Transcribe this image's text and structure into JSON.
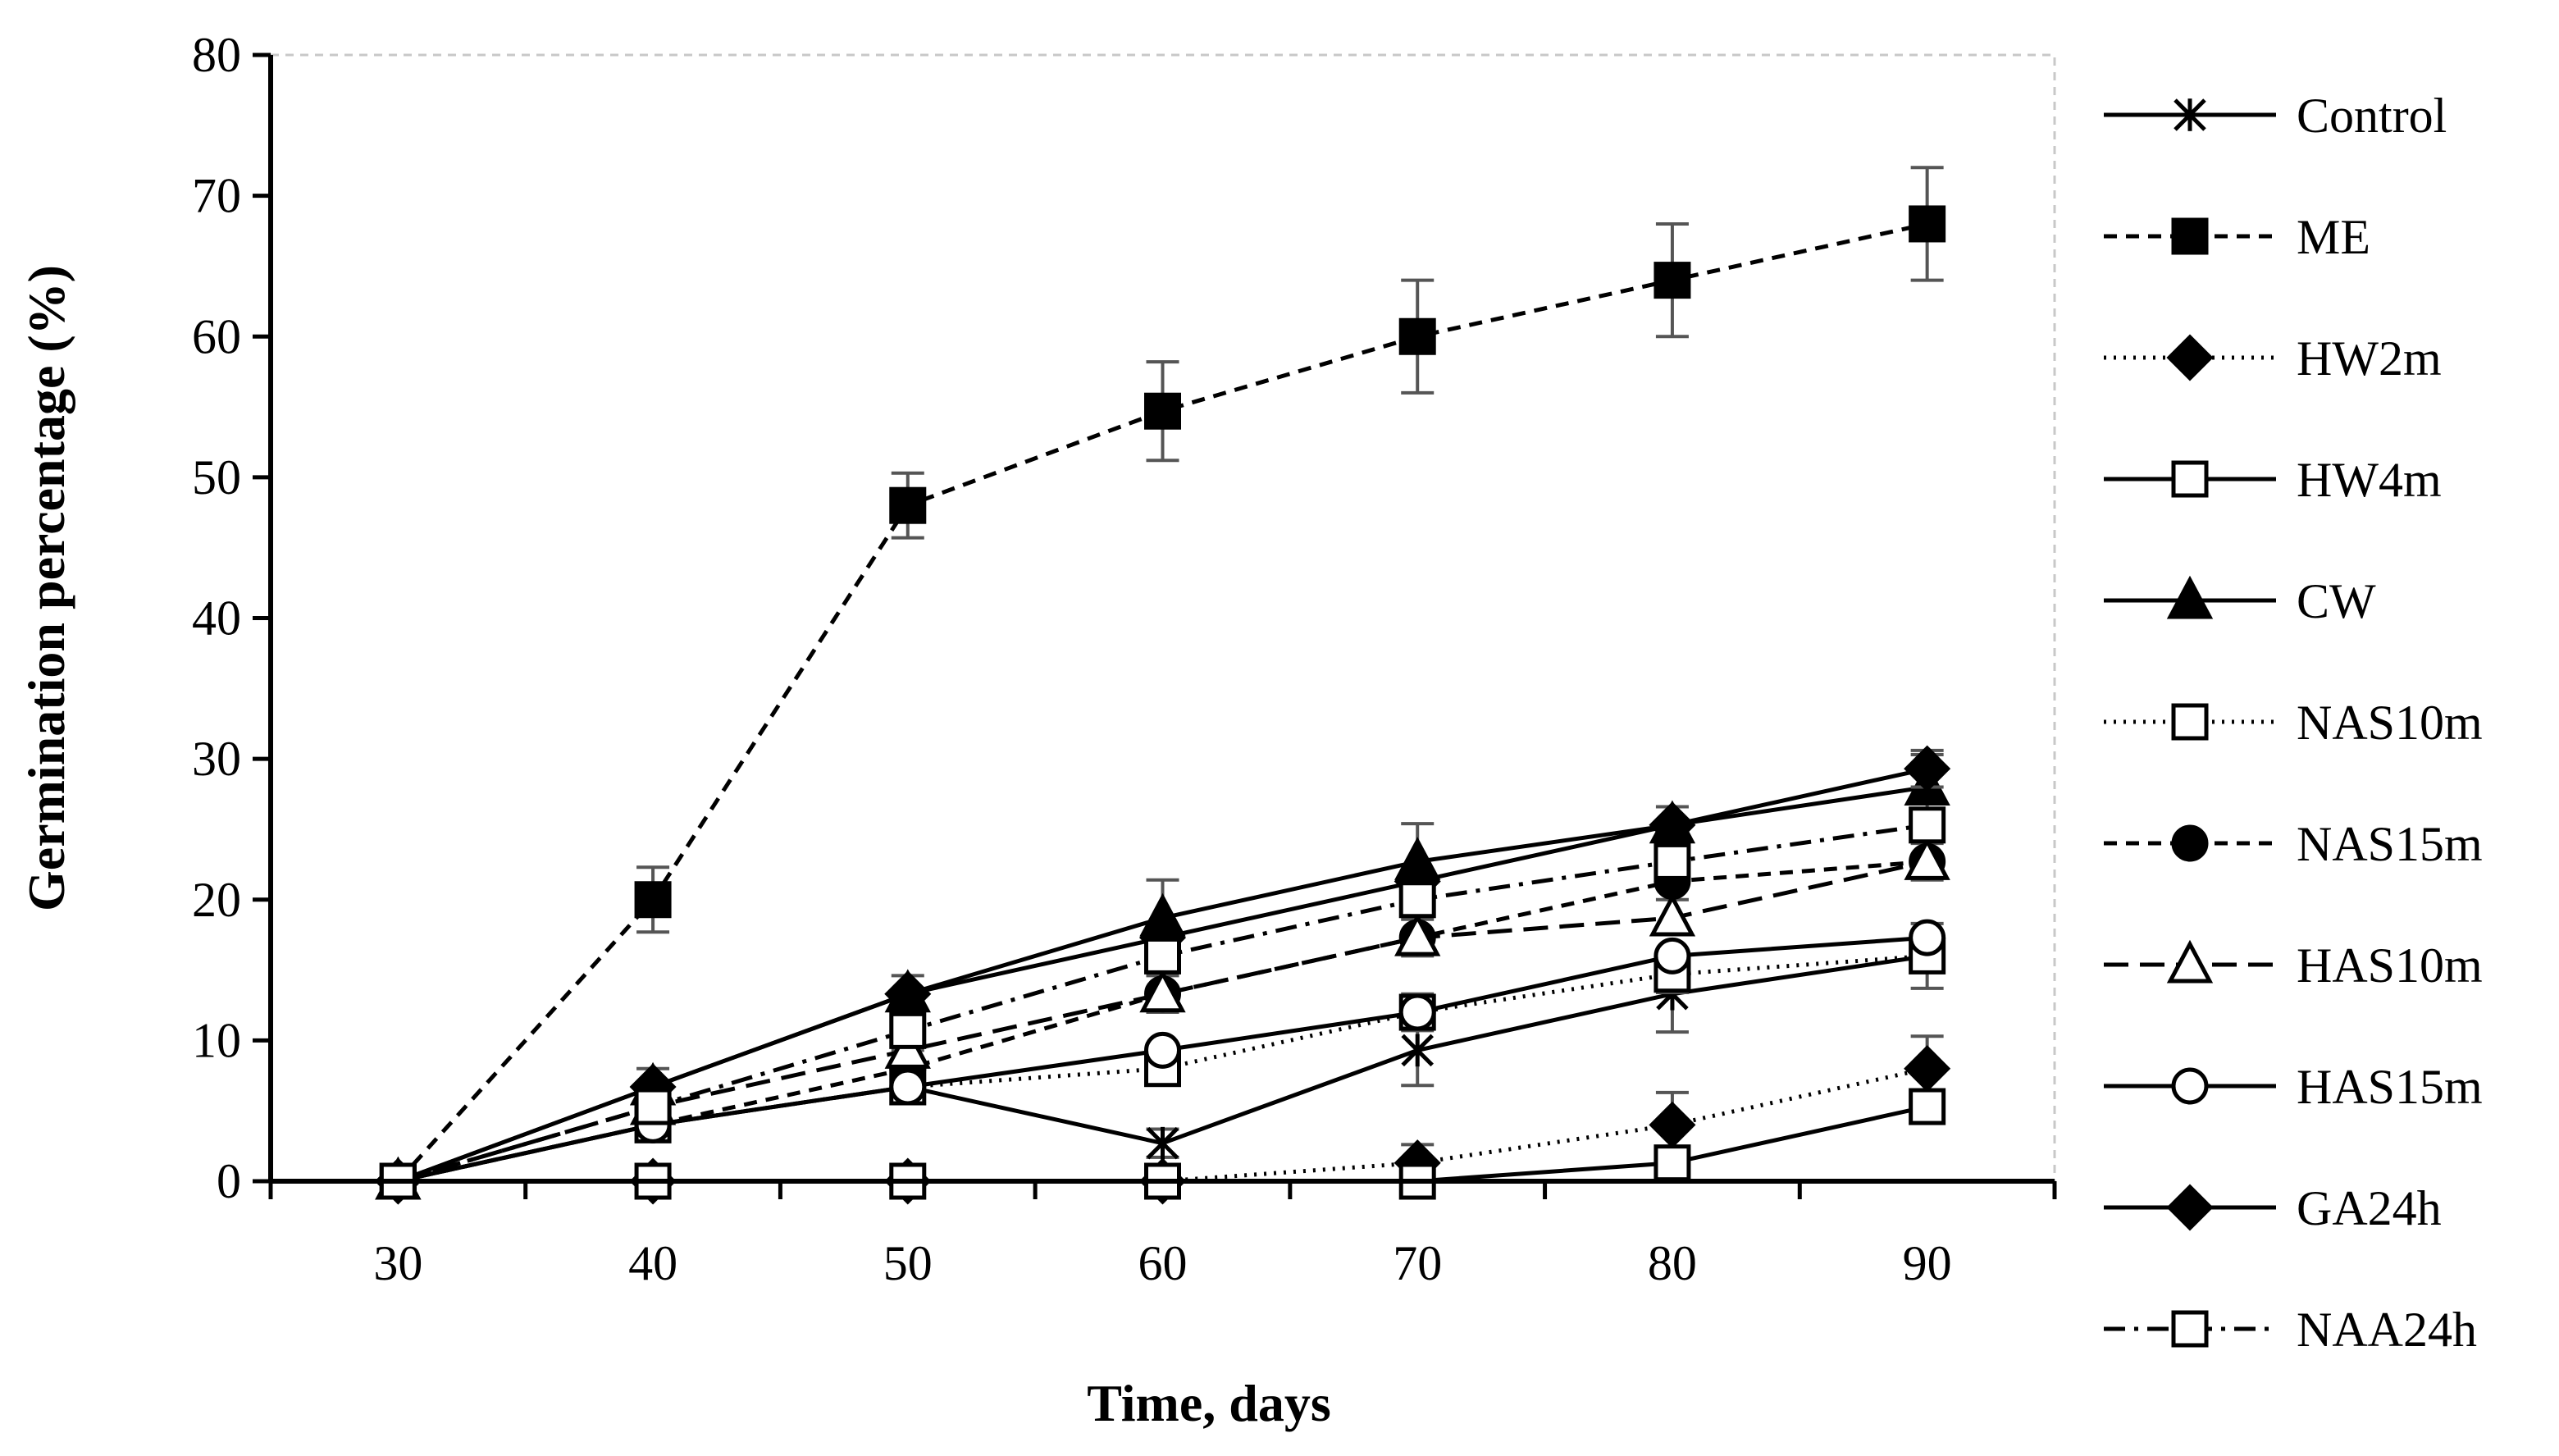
{
  "chart_data": {
    "type": "line",
    "title": "",
    "xlabel": "Time, days",
    "ylabel": "Germination percentage (%)",
    "x": [
      30,
      40,
      50,
      60,
      70,
      80,
      90
    ],
    "xlim": [
      25,
      95
    ],
    "ylim": [
      0,
      80
    ],
    "yticks": [
      0,
      10,
      20,
      30,
      40,
      50,
      60,
      70,
      80
    ],
    "grid": false,
    "legend_position": "right",
    "series": [
      {
        "name": "Control",
        "marker": "x",
        "line": "solid",
        "values": [
          0,
          4,
          6.7,
          2.7,
          9.3,
          13.3,
          16
        ],
        "err": [
          0,
          0,
          0,
          1,
          2.5,
          2.7,
          0
        ]
      },
      {
        "name": "ME",
        "marker": "square-filled",
        "line": "dashed",
        "values": [
          0,
          20,
          48,
          54.7,
          60,
          64,
          68
        ],
        "err": [
          0,
          2.3,
          2.3,
          3.5,
          4,
          4,
          4
        ]
      },
      {
        "name": "HW2m",
        "marker": "diamond-filled",
        "line": "dotted",
        "values": [
          0,
          0,
          0,
          0,
          1.3,
          4,
          8
        ],
        "err": [
          0,
          0,
          0,
          0,
          1.3,
          2.3,
          2.3
        ]
      },
      {
        "name": "HW4m",
        "marker": "square-open",
        "line": "solid",
        "values": [
          0,
          0,
          0,
          0,
          0,
          1.3,
          5.3
        ],
        "err": [
          0,
          0,
          0,
          0,
          0,
          0,
          0
        ]
      },
      {
        "name": "CW",
        "marker": "triangle-filled",
        "line": "solid",
        "values": [
          0,
          6.7,
          13.3,
          18.7,
          22.7,
          25.3,
          28
        ],
        "err": [
          0,
          1.3,
          1.3,
          2.7,
          2.7,
          1.3,
          2.3
        ]
      },
      {
        "name": "NAS10m",
        "marker": "square-open",
        "line": "dotted",
        "values": [
          0,
          4,
          6.7,
          8,
          12,
          14.7,
          16
        ],
        "err": [
          0,
          0,
          0,
          0,
          1.3,
          1.3,
          2.3
        ]
      },
      {
        "name": "NAS15m",
        "marker": "circle-filled",
        "line": "dashed",
        "values": [
          0,
          4,
          8,
          13.3,
          17.3,
          21.3,
          22.7
        ],
        "err": [
          0,
          0,
          1.3,
          1.3,
          1.3,
          1.3,
          1.3
        ]
      },
      {
        "name": "HAS10m",
        "marker": "triangle-open",
        "line": "longdash",
        "values": [
          0,
          5.3,
          9.3,
          13.3,
          17.3,
          18.7,
          22.7
        ],
        "err": [
          0,
          0,
          0,
          0,
          0,
          0,
          0
        ]
      },
      {
        "name": "HAS15m",
        "marker": "circle-open",
        "line": "solid",
        "values": [
          0,
          4,
          6.7,
          9.3,
          12,
          16,
          17.3
        ],
        "err": [
          0,
          0,
          0,
          0,
          0,
          0,
          0
        ]
      },
      {
        "name": "GA24h",
        "marker": "diamond-filled",
        "line": "solid",
        "values": [
          0,
          6.7,
          13.3,
          17.3,
          21.3,
          25.3,
          29.3
        ],
        "err": [
          0,
          0,
          0,
          0,
          0,
          0,
          1.3
        ]
      },
      {
        "name": "NAA24h",
        "marker": "square-open",
        "line": "dashdot",
        "values": [
          0,
          5.3,
          10.7,
          16,
          20,
          22.7,
          25.3
        ],
        "err": [
          0,
          0,
          0,
          0,
          0,
          0,
          0
        ]
      }
    ]
  }
}
